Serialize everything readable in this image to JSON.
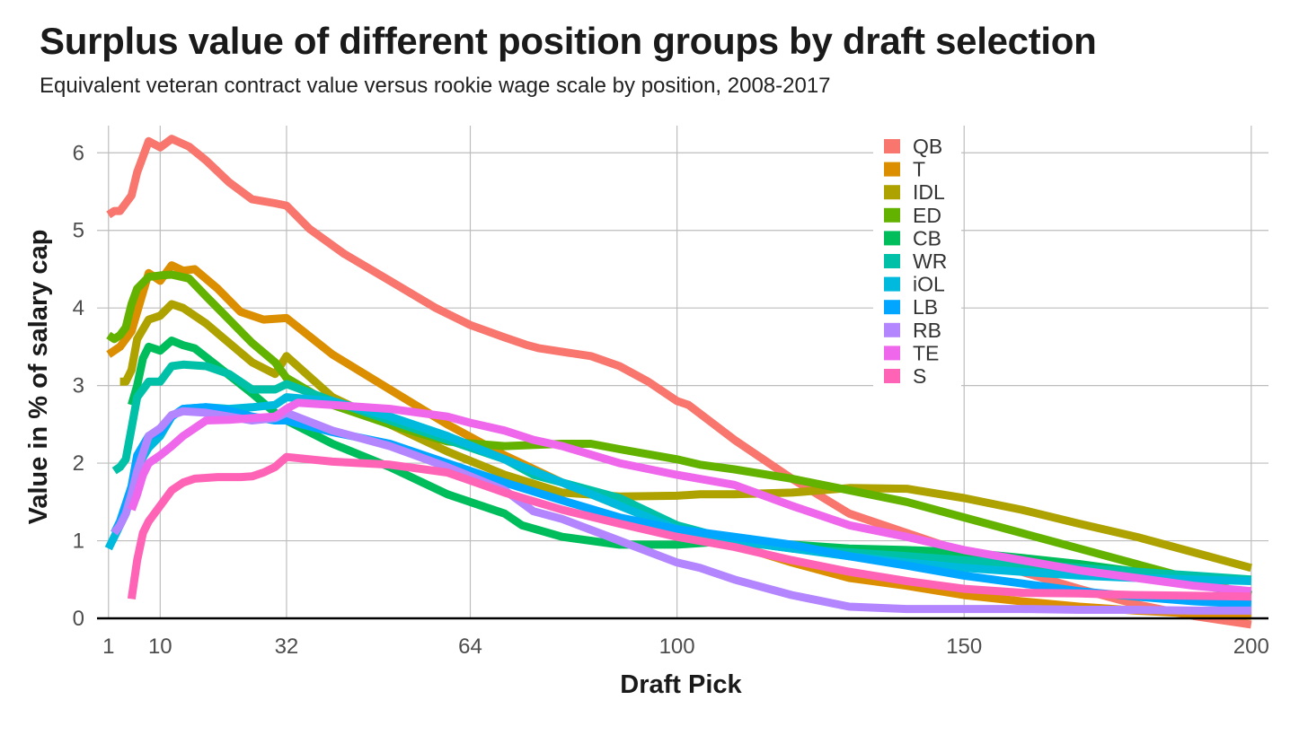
{
  "chart_data": {
    "type": "line",
    "title": "Surplus value of different position groups by draft selection",
    "subtitle": "Equivalent veteran contract value versus rookie wage scale by position, 2008-2017",
    "xlabel": "Draft Pick",
    "ylabel": "Value in % of salary cap",
    "xlim": [
      -1,
      203
    ],
    "ylim": [
      0,
      6.35
    ],
    "xticks": [
      1,
      10,
      32,
      64,
      100,
      150,
      200
    ],
    "yticks": [
      0,
      1,
      2,
      3,
      4,
      5,
      6
    ],
    "grid": true,
    "legend_position": "top-right",
    "series": [
      {
        "name": "QB",
        "color": "#F8766D",
        "x": [
          1,
          2,
          3,
          4,
          5,
          6,
          8,
          10,
          12,
          15,
          18,
          22,
          26,
          30,
          32,
          36,
          42,
          50,
          58,
          64,
          70,
          74,
          76,
          85,
          90,
          95,
          100,
          102,
          110,
          120,
          130,
          140,
          150,
          160,
          170,
          180,
          190,
          200
        ],
        "y": [
          5.2,
          5.25,
          5.25,
          5.35,
          5.45,
          5.75,
          6.15,
          6.07,
          6.18,
          6.08,
          5.9,
          5.62,
          5.4,
          5.35,
          5.32,
          5.02,
          4.7,
          4.35,
          4.0,
          3.78,
          3.62,
          3.52,
          3.48,
          3.38,
          3.25,
          3.05,
          2.8,
          2.75,
          2.3,
          1.8,
          1.35,
          1.1,
          0.85,
          0.6,
          0.38,
          0.18,
          0.03,
          -0.08
        ]
      },
      {
        "name": "T",
        "color": "#DB8E00",
        "x": [
          1,
          3,
          5,
          7,
          8,
          10,
          12,
          14,
          16,
          20,
          24,
          28,
          32,
          40,
          50,
          60,
          70,
          80,
          90,
          100,
          110,
          120,
          130,
          140,
          150,
          160,
          170,
          180,
          190,
          200
        ],
        "y": [
          3.4,
          3.5,
          3.7,
          4.2,
          4.45,
          4.35,
          4.55,
          4.48,
          4.5,
          4.25,
          3.95,
          3.85,
          3.87,
          3.4,
          2.95,
          2.5,
          2.1,
          1.75,
          1.45,
          1.2,
          0.95,
          0.72,
          0.52,
          0.42,
          0.3,
          0.22,
          0.15,
          0.1,
          0.06,
          0.03
        ]
      },
      {
        "name": "IDL",
        "color": "#AEA200",
        "x": [
          3,
          4,
          5,
          6,
          8,
          10,
          12,
          14,
          18,
          22,
          26,
          30,
          32,
          40,
          50,
          60,
          70,
          80,
          90,
          100,
          104,
          110,
          120,
          130,
          140,
          150,
          160,
          170,
          180,
          190,
          200
        ],
        "y": [
          3.05,
          3.05,
          3.2,
          3.6,
          3.85,
          3.9,
          4.05,
          4.0,
          3.8,
          3.55,
          3.3,
          3.15,
          3.38,
          2.85,
          2.5,
          2.15,
          1.85,
          1.62,
          1.57,
          1.58,
          1.6,
          1.6,
          1.62,
          1.68,
          1.67,
          1.55,
          1.4,
          1.22,
          1.05,
          0.85,
          0.65
        ]
      },
      {
        "name": "ED",
        "color": "#64B200",
        "x": [
          1,
          2,
          3,
          4,
          5,
          6,
          8,
          10,
          12,
          15,
          18,
          22,
          26,
          30,
          32,
          40,
          50,
          60,
          70,
          80,
          85,
          90,
          100,
          104,
          110,
          120,
          130,
          140,
          150,
          160,
          170,
          180,
          190,
          200
        ],
        "y": [
          3.65,
          3.6,
          3.65,
          3.75,
          4.05,
          4.25,
          4.4,
          4.42,
          4.43,
          4.38,
          4.15,
          3.85,
          3.55,
          3.3,
          3.1,
          2.75,
          2.5,
          2.28,
          2.22,
          2.25,
          2.25,
          2.18,
          2.05,
          1.98,
          1.92,
          1.8,
          1.65,
          1.5,
          1.3,
          1.1,
          0.9,
          0.7,
          0.5,
          0.3
        ]
      },
      {
        "name": "CB",
        "color": "#00BD5C",
        "x": [
          5,
          6,
          7,
          8,
          10,
          12,
          14,
          16,
          20,
          26,
          30,
          32,
          40,
          50,
          60,
          70,
          73,
          80,
          90,
          100,
          110,
          120,
          130,
          140,
          150,
          160,
          170,
          180,
          190,
          200
        ],
        "y": [
          2.75,
          3.0,
          3.35,
          3.5,
          3.45,
          3.58,
          3.52,
          3.48,
          3.25,
          2.9,
          2.65,
          2.55,
          2.25,
          1.95,
          1.6,
          1.35,
          1.2,
          1.05,
          0.95,
          0.95,
          1.0,
          0.95,
          0.9,
          0.88,
          0.85,
          0.78,
          0.7,
          0.6,
          0.45,
          0.3
        ]
      },
      {
        "name": "WR",
        "color": "#00C1A7",
        "x": [
          2,
          3,
          4,
          5,
          6,
          8,
          10,
          12,
          14,
          18,
          22,
          26,
          30,
          32,
          40,
          50,
          60,
          70,
          75,
          80,
          90,
          100,
          110,
          120,
          130,
          140,
          150,
          160,
          170,
          180,
          190,
          200
        ],
        "y": [
          1.9,
          1.95,
          2.05,
          2.45,
          2.85,
          3.05,
          3.05,
          3.25,
          3.27,
          3.25,
          3.15,
          2.95,
          2.95,
          3.02,
          2.8,
          2.55,
          2.3,
          2.05,
          1.85,
          1.75,
          1.55,
          1.2,
          1.0,
          0.9,
          0.85,
          0.8,
          0.75,
          0.7,
          0.65,
          0.6,
          0.55,
          0.5
        ]
      },
      {
        "name": "iOL",
        "color": "#00BADE",
        "x": [
          1,
          2,
          3,
          4,
          5,
          6,
          8,
          10,
          12,
          14,
          18,
          22,
          26,
          30,
          32,
          40,
          50,
          60,
          70,
          80,
          90,
          100,
          110,
          120,
          130,
          140,
          150,
          160,
          170,
          180,
          190,
          200
        ],
        "y": [
          0.9,
          1.05,
          1.2,
          1.35,
          1.6,
          1.95,
          2.2,
          2.35,
          2.6,
          2.7,
          2.72,
          2.7,
          2.72,
          2.75,
          2.85,
          2.8,
          2.6,
          2.35,
          2.05,
          1.75,
          1.45,
          1.15,
          1.0,
          0.9,
          0.8,
          0.72,
          0.65,
          0.6,
          0.55,
          0.52,
          0.5,
          0.48
        ]
      },
      {
        "name": "LB",
        "color": "#00A6FF",
        "x": [
          2,
          3,
          5,
          6,
          8,
          10,
          12,
          14,
          18,
          22,
          26,
          30,
          32,
          40,
          50,
          60,
          70,
          80,
          90,
          100,
          110,
          120,
          130,
          140,
          150,
          160,
          170,
          180,
          190,
          200
        ],
        "y": [
          1.1,
          1.25,
          1.7,
          2.1,
          2.35,
          2.4,
          2.6,
          2.7,
          2.72,
          2.68,
          2.6,
          2.55,
          2.55,
          2.4,
          2.25,
          2.0,
          1.75,
          1.52,
          1.3,
          1.15,
          1.05,
          0.95,
          0.8,
          0.68,
          0.55,
          0.45,
          0.35,
          0.28,
          0.22,
          0.18
        ]
      },
      {
        "name": "RB",
        "color": "#B385FF",
        "x": [
          2,
          3,
          4,
          5,
          6,
          8,
          10,
          12,
          14,
          18,
          22,
          26,
          30,
          32,
          40,
          50,
          60,
          70,
          75,
          80,
          90,
          100,
          104,
          110,
          120,
          130,
          140,
          150,
          160,
          170,
          180,
          190,
          200
        ],
        "y": [
          1.1,
          1.2,
          1.35,
          1.6,
          1.9,
          2.35,
          2.45,
          2.62,
          2.67,
          2.65,
          2.6,
          2.55,
          2.58,
          2.65,
          2.42,
          2.22,
          1.95,
          1.65,
          1.38,
          1.28,
          1.0,
          0.72,
          0.65,
          0.5,
          0.3,
          0.15,
          0.12,
          0.12,
          0.12,
          0.11,
          0.11,
          0.1,
          0.1
        ]
      },
      {
        "name": "TE",
        "color": "#EF67EB",
        "x": [
          5,
          6,
          7,
          8,
          10,
          12,
          14,
          18,
          22,
          26,
          30,
          32,
          34,
          40,
          50,
          60,
          64,
          70,
          75,
          80,
          90,
          100,
          110,
          120,
          130,
          140,
          150,
          160,
          170,
          180,
          190,
          200
        ],
        "y": [
          1.4,
          1.6,
          1.85,
          2.0,
          2.1,
          2.22,
          2.35,
          2.55,
          2.56,
          2.58,
          2.6,
          2.7,
          2.78,
          2.75,
          2.7,
          2.6,
          2.52,
          2.42,
          2.3,
          2.22,
          2.0,
          1.85,
          1.72,
          1.45,
          1.2,
          1.05,
          0.88,
          0.75,
          0.62,
          0.52,
          0.42,
          0.35
        ]
      },
      {
        "name": "S",
        "color": "#FF63B6",
        "x": [
          5,
          6,
          7,
          8,
          10,
          12,
          14,
          16,
          20,
          24,
          26,
          28,
          30,
          32,
          40,
          50,
          60,
          70,
          80,
          90,
          100,
          110,
          120,
          130,
          140,
          150,
          160,
          170,
          180,
          190,
          200
        ],
        "y": [
          0.25,
          0.75,
          1.1,
          1.25,
          1.45,
          1.65,
          1.75,
          1.8,
          1.82,
          1.82,
          1.83,
          1.88,
          1.95,
          2.08,
          2.02,
          1.98,
          1.88,
          1.62,
          1.4,
          1.22,
          1.05,
          0.92,
          0.75,
          0.6,
          0.48,
          0.38,
          0.33,
          0.32,
          0.3,
          0.29,
          0.28
        ]
      }
    ]
  }
}
